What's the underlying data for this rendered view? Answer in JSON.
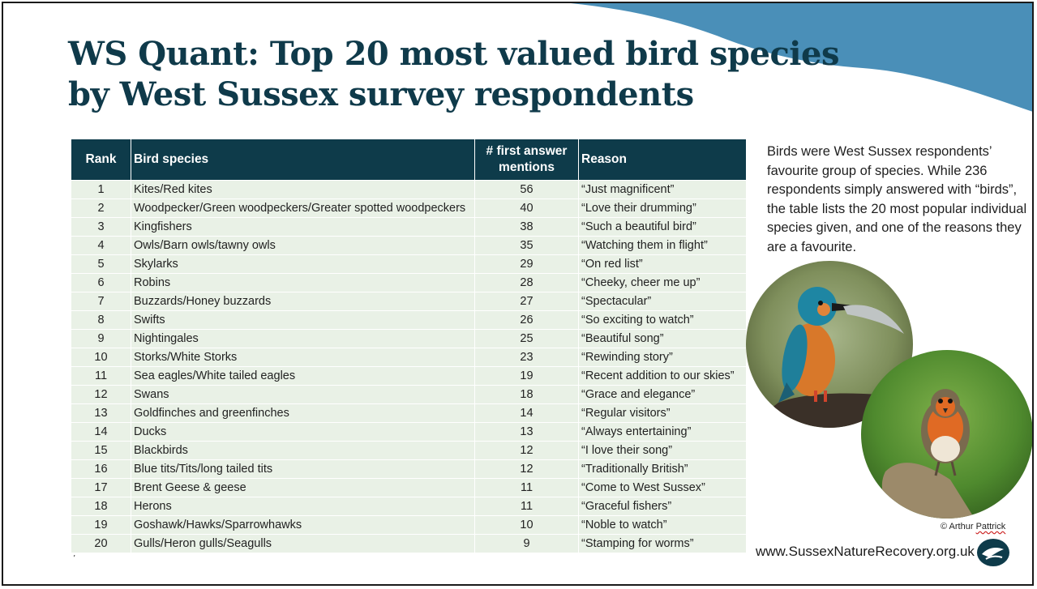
{
  "title": {
    "line1": "WS Quant: Top 20 most valued bird species",
    "line2": "by West Sussex survey respondents"
  },
  "table": {
    "headers": {
      "rank": "Rank",
      "species": "Bird species",
      "count_line1": "# first answer",
      "count_line2": "mentions",
      "reason": "Reason"
    },
    "rows": [
      {
        "rank": "1",
        "species": "Kites/Red kites",
        "count": "56",
        "reason": "“Just magnificent”"
      },
      {
        "rank": "2",
        "species": "Woodpecker/Green woodpeckers/Greater spotted woodpeckers",
        "count": "40",
        "reason": "“Love their drumming”"
      },
      {
        "rank": "3",
        "species": "Kingfishers",
        "count": "38",
        "reason": "“Such a beautiful bird”"
      },
      {
        "rank": "4",
        "species": "Owls/Barn owls/tawny owls",
        "count": "35",
        "reason": "“Watching them in flight”"
      },
      {
        "rank": "5",
        "species": "Skylarks",
        "count": "29",
        "reason": "“On red list”"
      },
      {
        "rank": "6",
        "species": "Robins",
        "count": "28",
        "reason": "“Cheeky, cheer me up”"
      },
      {
        "rank": "7",
        "species": "Buzzards/Honey buzzards",
        "count": "27",
        "reason": "“Spectacular”"
      },
      {
        "rank": "8",
        "species": "Swifts",
        "count": "26",
        "reason": "“So exciting to watch”"
      },
      {
        "rank": "9",
        "species": "Nightingales",
        "count": "25",
        "reason": "“Beautiful song”"
      },
      {
        "rank": "10",
        "species": "Storks/White Storks",
        "count": "23",
        "reason": "“Rewinding story”"
      },
      {
        "rank": "11",
        "species": "Sea eagles/White tailed eagles",
        "count": "19",
        "reason": "“Recent addition to our skies”"
      },
      {
        "rank": "12",
        "species": "Swans",
        "count": "18",
        "reason": "“Grace and elegance”"
      },
      {
        "rank": "13",
        "species": "Goldfinches and greenfinches",
        "count": "14",
        "reason": "“Regular visitors”"
      },
      {
        "rank": "14",
        "species": "Ducks",
        "count": "13",
        "reason": "“Always entertaining”"
      },
      {
        "rank": "15",
        "species": "Blackbirds",
        "count": "12",
        "reason": "“I love their song”"
      },
      {
        "rank": "16",
        "species": "Blue tits/Tits/long tailed tits",
        "count": "12",
        "reason": "“Traditionally British”"
      },
      {
        "rank": "17",
        "species": "Brent Geese & geese",
        "count": "11",
        "reason": "“Come to West Sussex”"
      },
      {
        "rank": "18",
        "species": "Herons",
        "count": "11",
        "reason": "“Graceful fishers”"
      },
      {
        "rank": "19",
        "species": "Goshawk/Hawks/Sparrowhawks",
        "count": "10",
        "reason": "“Noble to watch”"
      },
      {
        "rank": "20",
        "species": "Gulls/Heron gulls/Seagulls",
        "count": "9",
        "reason": "“Stamping for worms”"
      }
    ]
  },
  "side_text": "Birds were West Sussex respondents’ favourite group of species. While 236 respondents simply answered with “birds”, the table lists the 20 most popular individual species given, and one of the reasons they are a favourite.",
  "photos": {
    "kingfisher": "kingfisher-photo",
    "robin": "robin-photo"
  },
  "credit": {
    "prefix": "© Arthur ",
    "name": "Pattrick"
  },
  "website": "www.SussexNatureRecovery.org.uk",
  "footer_mark": "’",
  "colors": {
    "title": "#0f3a4a",
    "header_bg": "#0e3b4a",
    "row_bg": "#e9f1e6",
    "wave": "#4a8fb8"
  }
}
